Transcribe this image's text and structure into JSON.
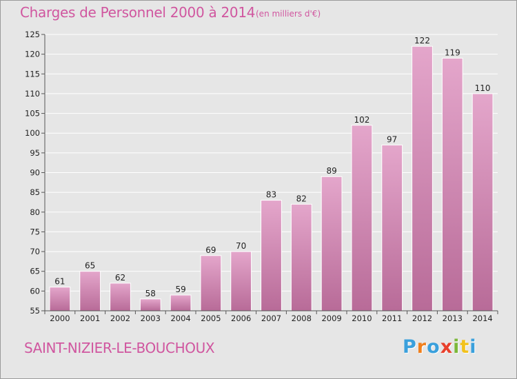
{
  "title": "Charges de Personnel 2000 à 2014",
  "unit_note": "(en milliers d'€)",
  "location": "SAINT-NIZIER-LE-BOUCHOUX",
  "logo": {
    "letters": [
      "P",
      "r",
      "o",
      "x",
      "i",
      "t",
      "i"
    ],
    "colors": [
      "#3aa0dc",
      "#f07f1c",
      "#3aa0dc",
      "#e8402c",
      "#7cb83a",
      "#f2c21d",
      "#3aa0dc"
    ]
  },
  "colors": {
    "title": "#d0569f",
    "bar_top": "#e4a6cb",
    "bar_bottom": "#b86b98",
    "background": "#e6e6e6",
    "gridline": "#ffffff"
  },
  "chart_data": {
    "type": "bar",
    "title": "Charges de Personnel 2000 à 2014",
    "xlabel": "",
    "ylabel": "",
    "categories": [
      "2000",
      "2001",
      "2002",
      "2003",
      "2004",
      "2005",
      "2006",
      "2007",
      "2008",
      "2009",
      "2010",
      "2011",
      "2012",
      "2013",
      "2014"
    ],
    "values": [
      61,
      65,
      62,
      58,
      59,
      69,
      70,
      83,
      82,
      89,
      102,
      97,
      122,
      119,
      110
    ],
    "ylim": [
      55,
      125
    ],
    "yticks": [
      55,
      60,
      65,
      70,
      75,
      80,
      85,
      90,
      95,
      100,
      105,
      110,
      115,
      120,
      125
    ],
    "grid": true,
    "data_labels": true
  }
}
